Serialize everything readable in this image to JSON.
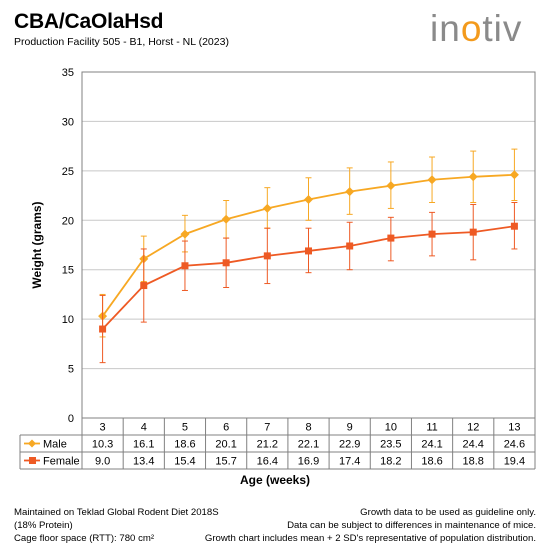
{
  "header": {
    "title": "CBA/CaOlaHsd",
    "subtitle": "Production Facility 505 - B1, Horst - NL (2023)",
    "logo_text": "inotiv"
  },
  "colors": {
    "male": "#f7a823",
    "female": "#ee5a24",
    "grid": "#c8c8c8",
    "axis": "#808080"
  },
  "chart_data": {
    "type": "line",
    "x": [
      "3",
      "4",
      "5",
      "6",
      "7",
      "8",
      "9",
      "10",
      "11",
      "12",
      "13"
    ],
    "xlabel": "Age (weeks)",
    "ylabel": "Weight (grams)",
    "ylim": [
      0,
      35
    ],
    "yticks": [
      0,
      5,
      10,
      15,
      20,
      25,
      30,
      35
    ],
    "grid": true,
    "legend": "data-table",
    "series": [
      {
        "name": "Male",
        "marker": "diamond",
        "values": [
          10.3,
          16.1,
          18.6,
          20.1,
          21.2,
          22.1,
          22.9,
          23.5,
          24.1,
          24.4,
          24.6
        ],
        "labels": [
          "10.3",
          "16.1",
          "18.6",
          "20.1",
          "21.2",
          "22.1",
          "22.9",
          "23.5",
          "24.1",
          "24.4",
          "24.6"
        ],
        "err_low": [
          8.2,
          13.8,
          16.8,
          18.2,
          19.2,
          20.0,
          20.6,
          21.2,
          21.8,
          21.8,
          22.0
        ],
        "err_high": [
          12.5,
          18.4,
          20.5,
          22.0,
          23.3,
          24.3,
          25.3,
          25.9,
          26.4,
          27.0,
          27.2
        ]
      },
      {
        "name": "Female",
        "marker": "square",
        "values": [
          9.0,
          13.4,
          15.4,
          15.7,
          16.4,
          16.9,
          17.4,
          18.2,
          18.6,
          18.8,
          19.4
        ],
        "labels": [
          "9.0",
          "13.4",
          "15.4",
          "15.7",
          "16.4",
          "16.9",
          "17.4",
          "18.2",
          "18.6",
          "18.8",
          "19.4"
        ],
        "err_low": [
          5.6,
          9.7,
          12.9,
          13.2,
          13.6,
          14.7,
          15.0,
          15.9,
          16.4,
          16.0,
          17.1
        ],
        "err_high": [
          12.4,
          17.1,
          17.9,
          18.2,
          19.2,
          19.2,
          19.8,
          20.3,
          20.8,
          21.6,
          21.8
        ]
      }
    ]
  },
  "footer": {
    "left": [
      "Maintained on Teklad Global Rodent Diet 2018S",
      "(18% Protein)",
      "Cage floor space (RTT): 780 cm²"
    ],
    "right": [
      "Growth data to be used as guideline only.",
      "Data can be subject to differences in maintenance of mice.",
      "Growth chart includes mean + 2 SD's representative of population distribution."
    ]
  }
}
